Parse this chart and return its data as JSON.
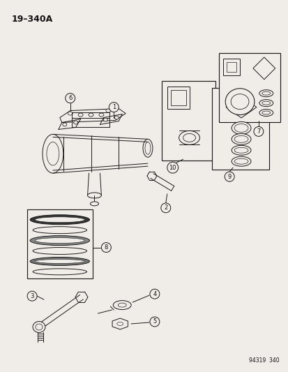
{
  "title": "19–340A",
  "bg_color": "#f0ede8",
  "part_numbers": [
    1,
    2,
    3,
    4,
    5,
    6,
    7,
    8,
    9,
    10
  ],
  "footer_text": "94319  340",
  "line_color": "#1a1a1a",
  "text_color": "#111111",
  "lw": 0.7
}
